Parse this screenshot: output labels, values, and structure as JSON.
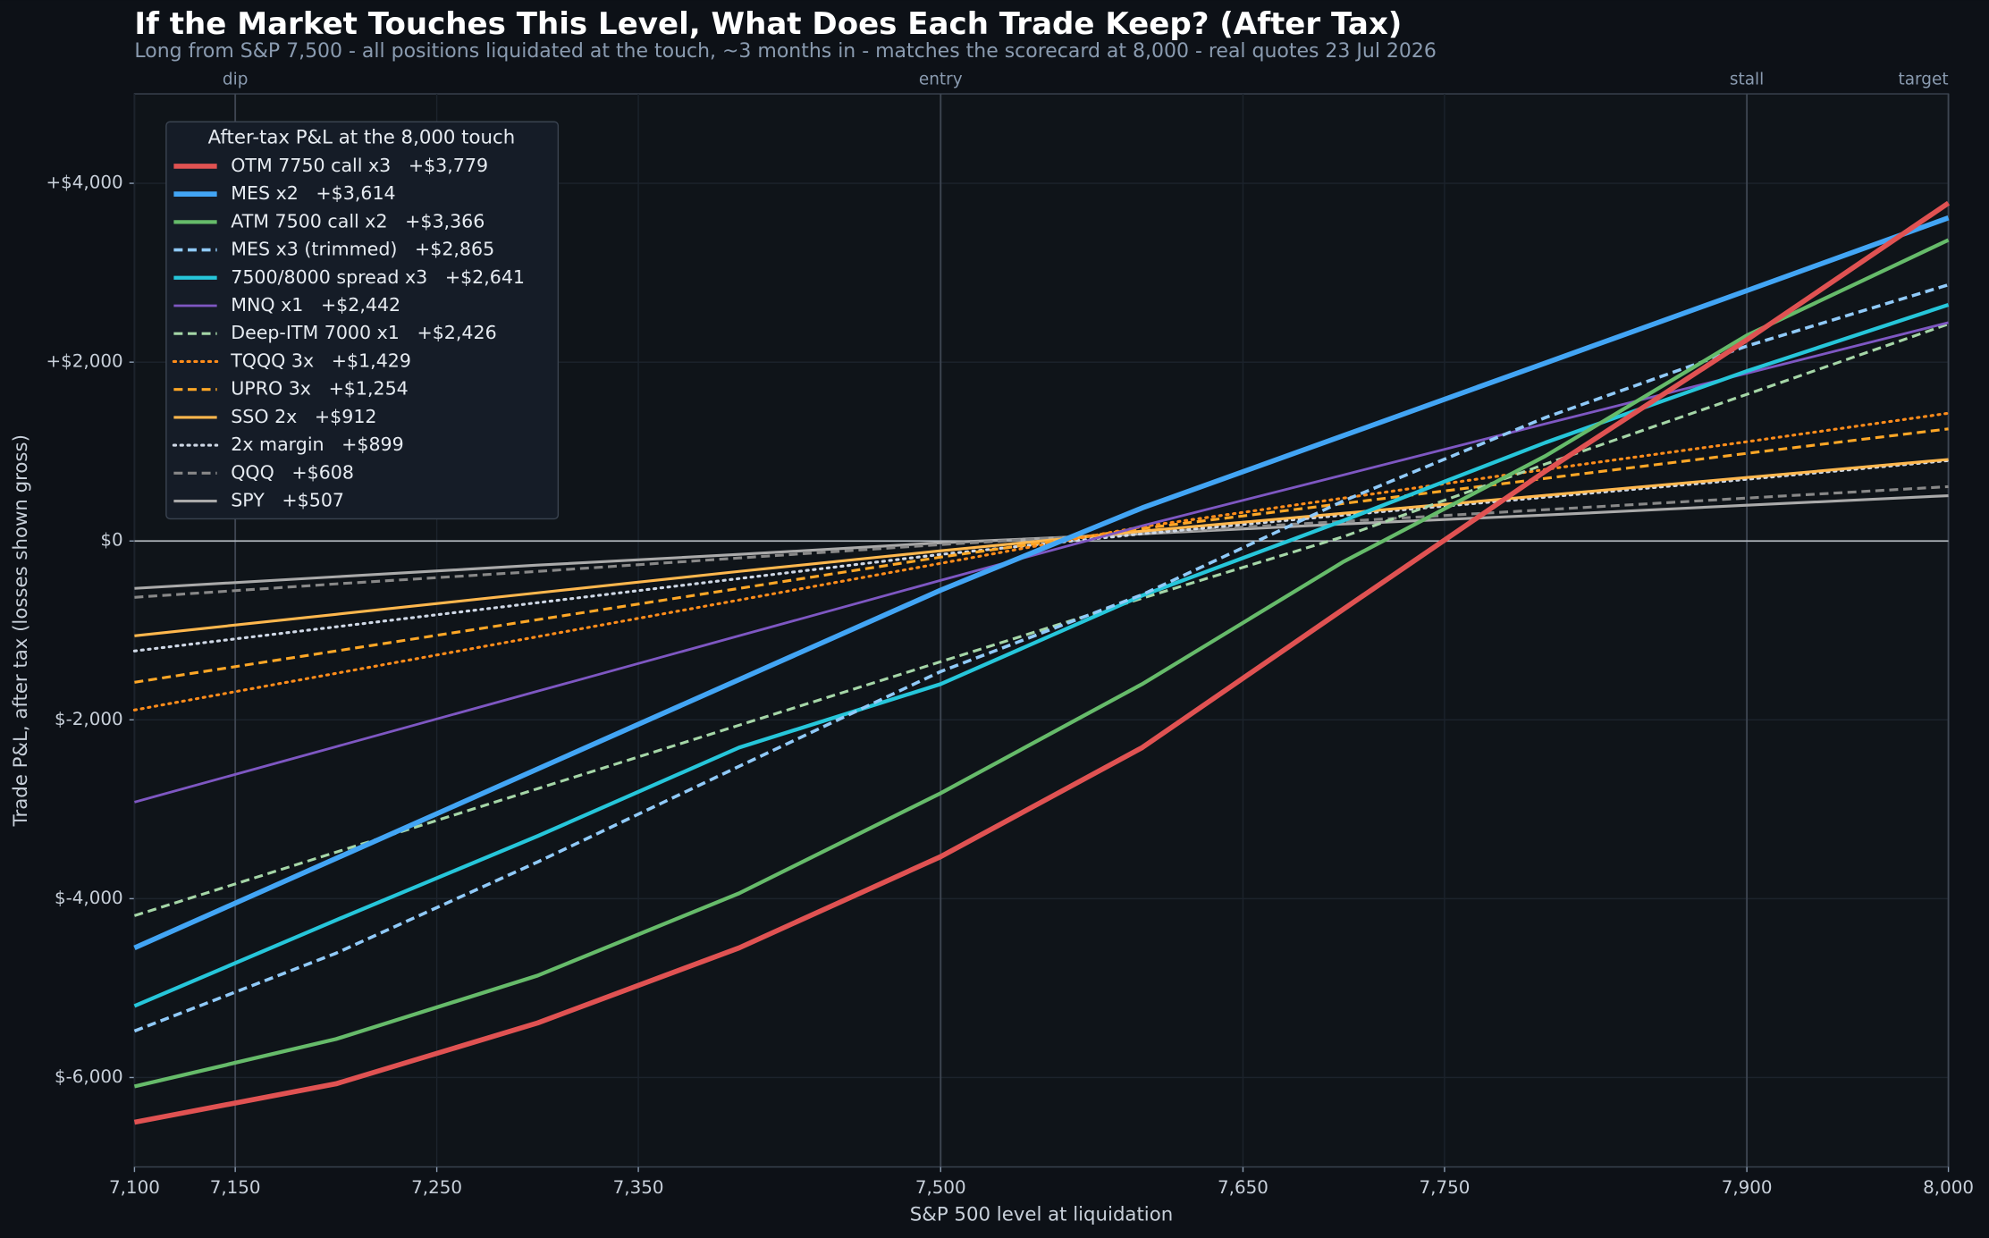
{
  "chart_data": {
    "type": "line",
    "title": "If the Market Touches This Level, What Does Each Trade Keep? (After Tax)",
    "subtitle": "Long from S&P 7,500 - all positions liquidated at the touch, ~3 months in - matches the scorecard at 8,000 - real quotes 23 Jul 2026",
    "x_label": "S&P 500 level at liquidation",
    "y_label": "Trade P&L, after tax (losses shown gross)",
    "legend_title": "After-tax P&L at the 8,000 touch",
    "legend": "upper left",
    "grid": true,
    "x": [
      7100,
      7200,
      7300,
      7400,
      7500,
      7600,
      7700,
      7800,
      7900,
      8000
    ],
    "xlim": [
      7100,
      8000
    ],
    "xticks": [
      {
        "value": 7100,
        "label": "7,100"
      },
      {
        "value": 7150,
        "label": "7,150"
      },
      {
        "value": 7250,
        "label": "7,250"
      },
      {
        "value": 7350,
        "label": "7,350"
      },
      {
        "value": 7500,
        "label": "7,500"
      },
      {
        "value": 7650,
        "label": "7,650"
      },
      {
        "value": 7750,
        "label": "7,750"
      },
      {
        "value": 7900,
        "label": "7,900"
      },
      {
        "value": 8000,
        "label": "8,000"
      }
    ],
    "ylim": [
      -7000,
      5000
    ],
    "yticks": [
      {
        "value": -6000,
        "label": "$-6,000"
      },
      {
        "value": -4000,
        "label": "$-4,000"
      },
      {
        "value": -2000,
        "label": "$-2,000"
      },
      {
        "value": 0,
        "label": "$0"
      },
      {
        "value": 2000,
        "label": "+$2,000"
      },
      {
        "value": 4000,
        "label": "+$4,000"
      }
    ],
    "markers": [
      {
        "value": 7150,
        "label": "dip"
      },
      {
        "value": 7500,
        "label": "entry"
      },
      {
        "value": 7900,
        "label": "stall"
      },
      {
        "value": 8000,
        "label": "target"
      }
    ],
    "series": [
      {
        "name": "OTM 7750 call x3   +$3,779",
        "color": "#e05252",
        "linewidth": 4,
        "dash": "solid",
        "values": [
          -6500,
          -6070,
          -5390,
          -4550,
          -3530,
          -2310,
          -760,
          780,
          2250,
          3779
        ]
      },
      {
        "name": "MES x2   +$3,614",
        "color": "#42a5f5",
        "linewidth": 4,
        "dash": "solid",
        "values": [
          -4550,
          -3550,
          -2550,
          -1550,
          -550,
          370,
          1180,
          1990,
          2800,
          3614
        ]
      },
      {
        "name": "ATM 7500 call x2   +$3,366",
        "color": "#66bb6a",
        "linewidth": 3,
        "dash": "solid",
        "values": [
          -6100,
          -5570,
          -4860,
          -3940,
          -2820,
          -1600,
          -230,
          950,
          2300,
          3366
        ]
      },
      {
        "name": "MES x3 (trimmed)   +$2,865",
        "color": "#90caf9",
        "linewidth": 2.5,
        "dash": "dashed",
        "values": [
          -5480,
          -4610,
          -3590,
          -2520,
          -1460,
          -600,
          450,
          1380,
          2180,
          2865
        ]
      },
      {
        "name": "7500/8000 spread x3   +$2,641",
        "color": "#26c6da",
        "linewidth": 3,
        "dash": "solid",
        "values": [
          -5200,
          -4240,
          -3300,
          -2310,
          -1600,
          -610,
          230,
          1100,
          1900,
          2641
        ]
      },
      {
        "name": "MNQ x1   +$2,442",
        "color": "#7e57c2",
        "linewidth": 2,
        "dash": "solid",
        "values": [
          -2920,
          -2300,
          -1680,
          -1060,
          -440,
          170,
          740,
          1310,
          1875,
          2442
        ]
      },
      {
        "name": "Deep-ITM 7000 x1   +$2,426",
        "color": "#a5d6a7",
        "linewidth": 2.2,
        "dash": "dashed",
        "values": [
          -4190,
          -3480,
          -2770,
          -2060,
          -1350,
          -640,
          50,
          860,
          1640,
          2426
        ]
      },
      {
        "name": "TQQQ 3x   +$1,429",
        "color": "#ff8c1a",
        "linewidth": 2.2,
        "dash": "dotted",
        "values": [
          -1890,
          -1480,
          -1070,
          -660,
          -250,
          160,
          480,
          800,
          1110,
          1429
        ]
      },
      {
        "name": "UPRO 3x   +$1,254",
        "color": "#ffa726",
        "linewidth": 2.2,
        "dash": "dashed",
        "values": [
          -1580,
          -1230,
          -880,
          -530,
          -180,
          140,
          420,
          700,
          980,
          1254
        ]
      },
      {
        "name": "SSO 2x   +$912",
        "color": "#ffb74d",
        "linewidth": 2.2,
        "dash": "solid",
        "values": [
          -1060,
          -820,
          -580,
          -340,
          -110,
          110,
          310,
          510,
          710,
          912
        ]
      },
      {
        "name": "2x margin   +$899",
        "color": "#cfd8e6",
        "linewidth": 2.2,
        "dash": "dotted",
        "values": [
          -1230,
          -960,
          -690,
          -420,
          -150,
          80,
          290,
          490,
          690,
          899
        ]
      },
      {
        "name": "QQQ   +$608",
        "color": "#888888",
        "linewidth": 2.2,
        "dash": "dashed",
        "values": [
          -630,
          -480,
          -340,
          -190,
          -40,
          90,
          220,
          350,
          480,
          608
        ]
      },
      {
        "name": "SPY   +$507",
        "color": "#aaaaaa",
        "linewidth": 2.2,
        "dash": "solid",
        "values": [
          -530,
          -400,
          -270,
          -150,
          -20,
          80,
          190,
          290,
          400,
          507
        ]
      }
    ]
  }
}
